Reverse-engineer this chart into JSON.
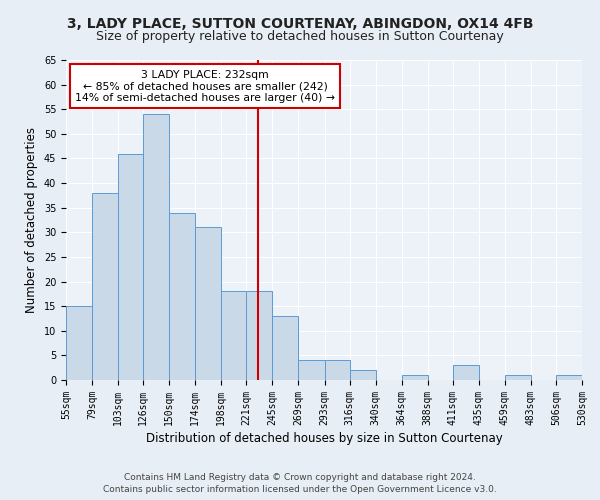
{
  "title": "3, LADY PLACE, SUTTON COURTENAY, ABINGDON, OX14 4FB",
  "subtitle": "Size of property relative to detached houses in Sutton Courtenay",
  "xlabel": "Distribution of detached houses by size in Sutton Courtenay",
  "ylabel": "Number of detached properties",
  "bin_labels": [
    "55sqm",
    "79sqm",
    "103sqm",
    "126sqm",
    "150sqm",
    "174sqm",
    "198sqm",
    "221sqm",
    "245sqm",
    "269sqm",
    "293sqm",
    "316sqm",
    "340sqm",
    "364sqm",
    "388sqm",
    "411sqm",
    "435sqm",
    "459sqm",
    "483sqm",
    "506sqm",
    "530sqm"
  ],
  "bin_edges": [
    55,
    79,
    103,
    126,
    150,
    174,
    198,
    221,
    245,
    269,
    293,
    316,
    340,
    364,
    388,
    411,
    435,
    459,
    483,
    506,
    530
  ],
  "bar_values": [
    15,
    38,
    46,
    54,
    34,
    31,
    18,
    18,
    13,
    4,
    4,
    2,
    0,
    1,
    0,
    3,
    0,
    1,
    0,
    1
  ],
  "bar_color": "#c9d9e8",
  "bar_edgecolor": "#5b9bd5",
  "vline_x": 232,
  "vline_color": "#cc0000",
  "annotation_line1": "3 LADY PLACE: 232sqm",
  "annotation_line2": "← 85% of detached houses are smaller (242)",
  "annotation_line3": "14% of semi-detached houses are larger (40) →",
  "annotation_box_color": "#ffffff",
  "annotation_box_edgecolor": "#cc0000",
  "ylim": [
    0,
    65
  ],
  "yticks": [
    0,
    5,
    10,
    15,
    20,
    25,
    30,
    35,
    40,
    45,
    50,
    55,
    60,
    65
  ],
  "footer_line1": "Contains HM Land Registry data © Crown copyright and database right 2024.",
  "footer_line2": "Contains public sector information licensed under the Open Government Licence v3.0.",
  "bg_color": "#e8eef5",
  "plot_bg_color": "#edf2f8",
  "grid_color": "#ffffff",
  "title_fontsize": 10,
  "subtitle_fontsize": 9,
  "axis_label_fontsize": 8.5,
  "tick_fontsize": 7,
  "footer_fontsize": 6.5
}
